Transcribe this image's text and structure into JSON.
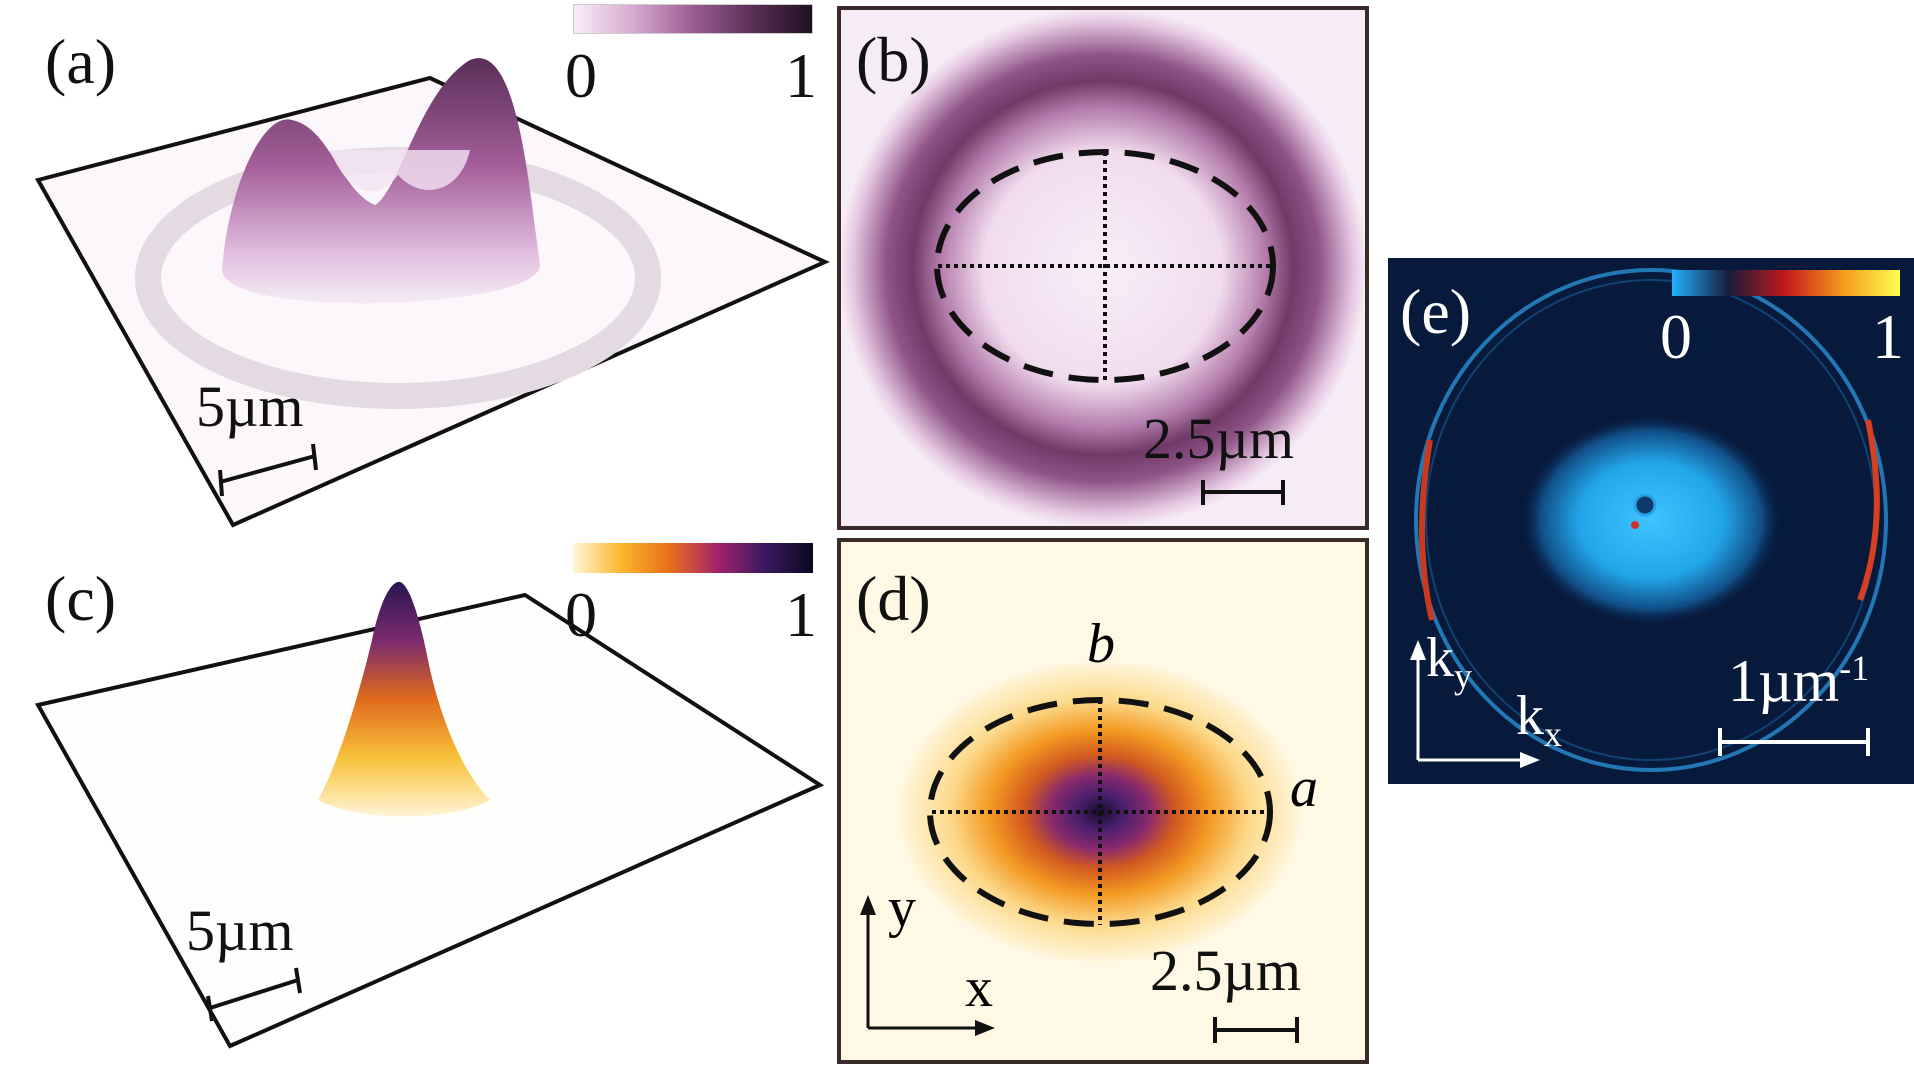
{
  "panels": {
    "a": {
      "label": "(a)",
      "colorbar": {
        "min": "0",
        "max": "1",
        "colors": [
          "#f7eef6",
          "#d7a9d0",
          "#9b5c93",
          "#5a2f55",
          "#1e1020"
        ]
      },
      "scale_bar": "5µm"
    },
    "b": {
      "label": "(b)",
      "scale_bar": "2.5µm"
    },
    "c": {
      "label": "(c)",
      "colorbar": {
        "min": "0",
        "max": "1",
        "colors": [
          "#fff6d5",
          "#fbb62e",
          "#e8701a",
          "#a3246a",
          "#3a1860",
          "#0c0820"
        ]
      },
      "scale_bar": "5µm"
    },
    "d": {
      "label": "(d)",
      "axis_b": "b",
      "axis_a": "a",
      "axis_y": "y",
      "axis_x": "x",
      "scale_bar": "2.5µm"
    },
    "e": {
      "label": "(e)",
      "colorbar": {
        "min": "0",
        "max": "1",
        "colors": [
          "#1fb2ff",
          "#1a1a3a",
          "#c4191c",
          "#f59a1a",
          "#ffff50"
        ]
      },
      "k_y": "k",
      "k_y_sub": "y",
      "k_x": "k",
      "k_x_sub": "x",
      "scale_bar_main": "1µm",
      "scale_bar_sup": "-1"
    }
  }
}
